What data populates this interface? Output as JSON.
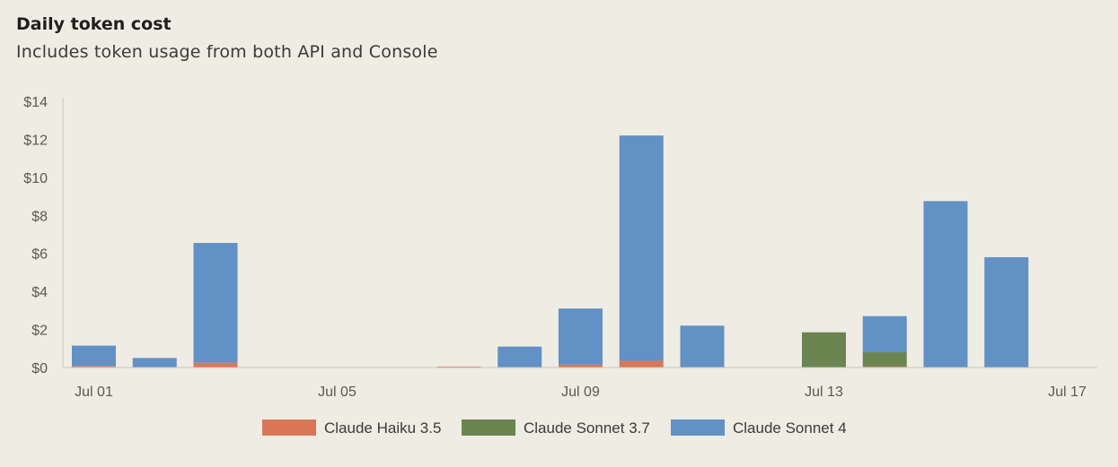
{
  "header": {
    "title": "Daily token cost",
    "subtitle": "Includes token usage from both API and Console"
  },
  "colors": {
    "background": "#efece4",
    "axis": "#c9c6bd",
    "haiku": "#d97757",
    "sonnet37": "#6b8550",
    "sonnet4": "#6191c5"
  },
  "chart_data": {
    "type": "bar",
    "stacked": true,
    "categories": [
      "Jul 01",
      "Jul 02",
      "Jul 03",
      "Jul 04",
      "Jul 05",
      "Jul 06",
      "Jul 07",
      "Jul 08",
      "Jul 09",
      "Jul 10",
      "Jul 11",
      "Jul 12",
      "Jul 13",
      "Jul 14",
      "Jul 15",
      "Jul 16",
      "Jul 17"
    ],
    "series": [
      {
        "name": "Claude Haiku 3.5",
        "color": "#d97757",
        "values": [
          0.08,
          0,
          0.25,
          0,
          0,
          0,
          0.05,
          0,
          0.15,
          0.35,
          0,
          0,
          0,
          0.05,
          0,
          0,
          0
        ]
      },
      {
        "name": "Claude Sonnet 3.7",
        "color": "#6b8550",
        "values": [
          0,
          0,
          0,
          0,
          0,
          0,
          0,
          0,
          0,
          0,
          0,
          0,
          1.85,
          0.75,
          0,
          0,
          0
        ]
      },
      {
        "name": "Claude Sonnet 4",
        "color": "#6191c5",
        "values": [
          1.07,
          0.5,
          6.3,
          0,
          0,
          0,
          0,
          1.1,
          2.95,
          11.85,
          2.2,
          0,
          0,
          1.9,
          8.75,
          5.8,
          0
        ]
      }
    ],
    "y_ticks": [
      "$0",
      "$2",
      "$4",
      "$6",
      "$8",
      "$10",
      "$12",
      "$14"
    ],
    "x_tick_labels": [
      "Jul 01",
      "Jul 05",
      "Jul 09",
      "Jul 13",
      "Jul 17"
    ],
    "ylim": [
      0,
      14
    ],
    "legend_position": "bottom-center",
    "grid": false
  }
}
